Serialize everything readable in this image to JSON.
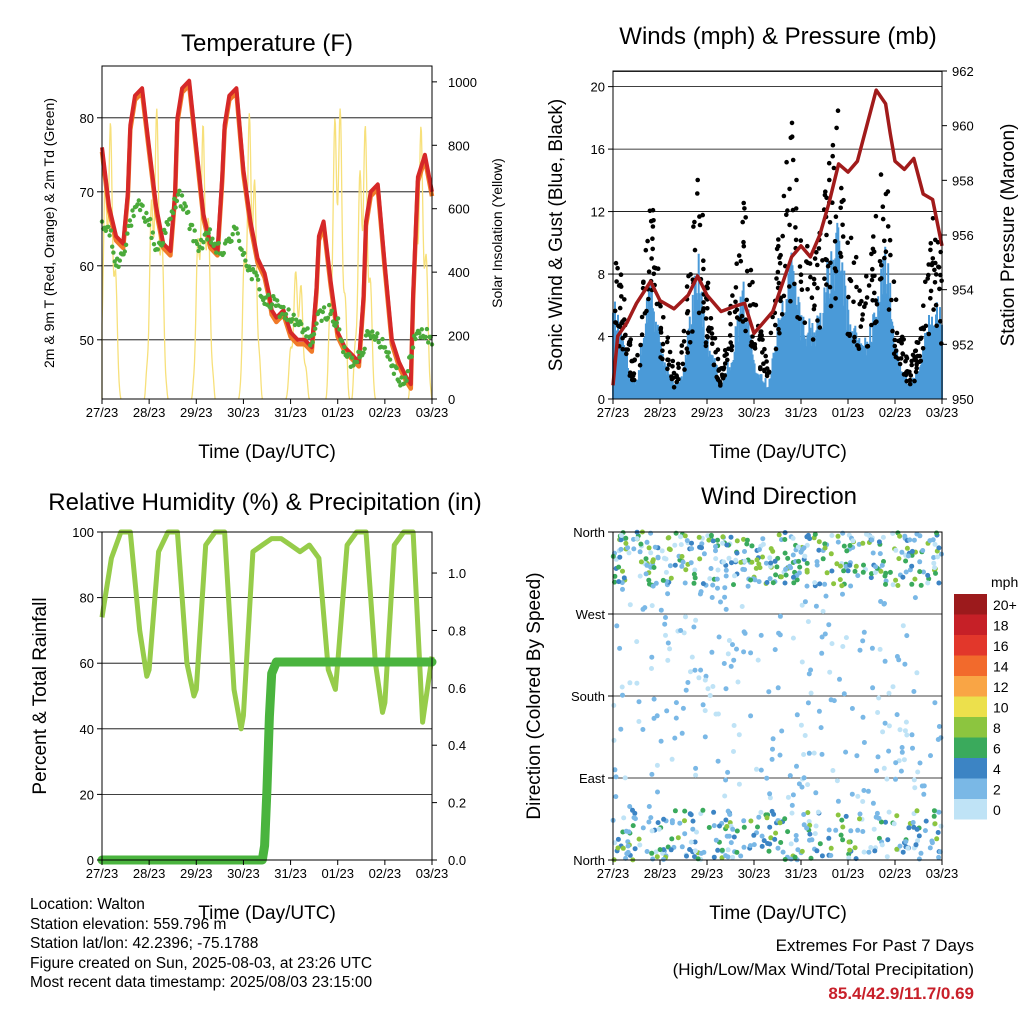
{
  "colors": {
    "temp2m": "#d62828",
    "temp9m": "#f07a28",
    "dewpoint": "#4aaa3a",
    "solar": "#f7e07a",
    "wind": "#4a9ad8",
    "gust": "#000000",
    "pressure": "#a11b1b",
    "rh": "#96cc4a",
    "precip": "#4ab43e"
  },
  "chart_data": [
    {
      "id": "temperature",
      "type": "line",
      "title": "Temperature (F)",
      "xlabel": "Time (Day/UTC)",
      "ylabel": "2m & 9m T (Red, Orange) & 2m Td (Green)",
      "y2label": "Solar Insolation (Yellow)",
      "xticks": [
        "27/23",
        "28/23",
        "29/23",
        "30/23",
        "31/23",
        "01/23",
        "02/23",
        "03/23"
      ],
      "xlim": [
        0,
        7
      ],
      "ylim": [
        42,
        87
      ],
      "yticks": [
        50,
        60,
        70,
        80
      ],
      "y2lim": [
        0,
        1050
      ],
      "y2ticks": [
        0,
        200,
        400,
        600,
        800,
        1000
      ],
      "series": [
        {
          "name": "2m T",
          "color": "temp2m",
          "x": [
            0,
            0.15,
            0.3,
            0.45,
            0.55,
            0.6,
            0.7,
            0.85,
            1,
            1.15,
            1.3,
            1.45,
            1.55,
            1.6,
            1.7,
            1.85,
            2,
            2.15,
            2.3,
            2.45,
            2.55,
            2.6,
            2.7,
            2.85,
            3,
            3.15,
            3.3,
            3.45,
            3.55,
            3.6,
            3.7,
            3.85,
            4,
            4.15,
            4.3,
            4.45,
            4.55,
            4.6,
            4.7,
            4.85,
            5,
            5.15,
            5.3,
            5.45,
            5.55,
            5.6,
            5.7,
            5.85,
            6,
            6.15,
            6.3,
            6.45,
            6.55,
            6.6,
            6.7,
            6.85,
            7
          ],
          "y": [
            76,
            68,
            64,
            63,
            70,
            79,
            83,
            84,
            76,
            68,
            63,
            62,
            70,
            80,
            84,
            85,
            76,
            67,
            63,
            62,
            72,
            79,
            83,
            84,
            73,
            66,
            61,
            59,
            56,
            54,
            53,
            54,
            51,
            50,
            50,
            49,
            57,
            64,
            66,
            58,
            51,
            49,
            48,
            47,
            56,
            66,
            70,
            71,
            60,
            50,
            47,
            45,
            44,
            56,
            72,
            75,
            70
          ]
        },
        {
          "name": "2m Td",
          "color": "dewpoint",
          "x": [
            0,
            0.15,
            0.3,
            0.45,
            0.6,
            0.8,
            1,
            1.15,
            1.3,
            1.45,
            1.6,
            1.8,
            2,
            2.15,
            2.3,
            2.45,
            2.6,
            2.8,
            3,
            3.15,
            3.3,
            3.45,
            3.6,
            3.8,
            4,
            4.15,
            4.3,
            4.45,
            4.6,
            4.8,
            5,
            5.15,
            5.3,
            5.45,
            5.6,
            5.8,
            6,
            6.15,
            6.3,
            6.45,
            6.6,
            6.8,
            7
          ],
          "y": [
            65,
            65,
            60,
            62,
            66,
            68,
            66,
            62,
            64,
            66,
            70,
            67,
            63,
            63,
            64,
            62,
            62,
            65,
            62,
            59,
            58,
            55,
            55,
            54,
            53,
            52,
            51,
            50,
            53,
            54,
            52,
            48,
            47,
            48,
            50,
            51,
            49,
            47,
            45,
            44,
            50,
            51,
            50
          ]
        }
      ],
      "solar": {
        "name": "Solar Insolation",
        "color": "solar",
        "peaks": [
          900,
          920,
          870,
          920,
          430,
          1010,
          900,
          870
        ],
        "noon": [
          0.15,
          1.15,
          2.15,
          3.15,
          4.15,
          5.0,
          5.55,
          6.75
        ]
      }
    },
    {
      "id": "winds",
      "type": "scatter",
      "title": "Winds (mph) & Pressure (mb)",
      "xlabel": "Time (Day/UTC)",
      "ylabel": "Sonic Wind & Gust (Blue, Black)",
      "y2label": "Station Pressure (Maroon)",
      "xticks": [
        "27/23",
        "28/23",
        "29/23",
        "30/23",
        "31/23",
        "01/23",
        "02/23",
        "03/23"
      ],
      "xlim": [
        0,
        7
      ],
      "ylim": [
        0,
        21
      ],
      "yticks": [
        0,
        4,
        8,
        12,
        16,
        20
      ],
      "y2lim": [
        950,
        962
      ],
      "y2ticks": [
        950,
        952,
        954,
        956,
        958,
        960,
        962
      ],
      "wind_envelope": {
        "x": [
          0,
          0.3,
          0.5,
          0.8,
          1,
          1.3,
          1.5,
          1.8,
          2,
          2.3,
          2.5,
          2.8,
          3,
          3.3,
          3.5,
          3.8,
          4,
          4.3,
          4.5,
          4.8,
          5,
          5.3,
          5.5,
          5.8,
          6,
          6.3,
          6.5,
          6.8,
          7
        ],
        "y": [
          7,
          3,
          1,
          9,
          4,
          1,
          2,
          10,
          5,
          1,
          3,
          8,
          3,
          1,
          5,
          10,
          6,
          5,
          8,
          12,
          6,
          4,
          5,
          11,
          4,
          1,
          2,
          7,
          6
        ]
      },
      "gust_envelope": {
        "x": [
          0,
          0.3,
          0.5,
          0.8,
          1,
          1.3,
          1.5,
          1.8,
          2,
          2.3,
          2.5,
          2.8,
          3,
          3.3,
          3.5,
          3.8,
          4,
          4.3,
          4.5,
          4.8,
          5,
          5.3,
          5.5,
          5.8,
          6,
          6.3,
          6.5,
          6.8,
          7
        ],
        "y": [
          12,
          5,
          2,
          14,
          7,
          2,
          4,
          17,
          8,
          2,
          6,
          13,
          7,
          2,
          10,
          18,
          11,
          9,
          15,
          19,
          11,
          8,
          10,
          17,
          7,
          2,
          4,
          12,
          10
        ]
      },
      "pressure": {
        "name": "Station Pressure",
        "color": "pressure",
        "x": [
          0,
          0.1,
          0.3,
          0.5,
          0.8,
          1,
          1.3,
          1.6,
          1.8,
          2,
          2.3,
          2.6,
          2.8,
          3,
          3.2,
          3.4,
          3.6,
          3.8,
          4,
          4.2,
          4.4,
          4.6,
          4.8,
          5,
          5.2,
          5.4,
          5.6,
          5.8,
          5.9,
          6,
          6.2,
          6.4,
          6.6,
          6.8,
          7
        ],
        "y": [
          950.5,
          952.3,
          952.8,
          953.5,
          954.3,
          953.6,
          953.3,
          953.8,
          954.5,
          953.8,
          953.2,
          953.4,
          953.5,
          952.4,
          952.8,
          953.2,
          954.2,
          955.2,
          955.6,
          955.2,
          956.0,
          957.2,
          958.6,
          958.3,
          958.7,
          960.0,
          961.3,
          960.8,
          959.7,
          958.7,
          958.4,
          958.8,
          957.5,
          957.3,
          955.6
        ]
      }
    },
    {
      "id": "humidity",
      "type": "line",
      "title": "Relative Humidity (%) & Precipitation (in)",
      "xlabel": "Time (Day/UTC)",
      "ylabel": "Percent & Total Rainfall",
      "xticks": [
        "27/23",
        "28/23",
        "29/23",
        "30/23",
        "31/23",
        "01/23",
        "02/23",
        "03/23"
      ],
      "xlim": [
        0,
        7
      ],
      "ylim": [
        0,
        100
      ],
      "yticks": [
        0,
        20,
        40,
        60,
        80,
        100
      ],
      "y2lim": [
        0,
        1.143
      ],
      "y2ticks": [
        "0.0",
        "0.2",
        "0.4",
        "0.6",
        "0.8",
        "1.0"
      ],
      "series": [
        {
          "name": "Relative Humidity",
          "color": "rh",
          "x": [
            0,
            0.2,
            0.4,
            0.6,
            0.8,
            0.95,
            1,
            1.2,
            1.4,
            1.6,
            1.8,
            1.95,
            2,
            2.2,
            2.4,
            2.6,
            2.8,
            2.95,
            3,
            3.2,
            3.4,
            3.6,
            3.8,
            4,
            4.2,
            4.4,
            4.6,
            4.8,
            4.95,
            5,
            5.2,
            5.4,
            5.6,
            5.8,
            5.95,
            6,
            6.2,
            6.4,
            6.6,
            6.8,
            7
          ],
          "y": [
            74,
            92,
            100,
            100,
            70,
            56,
            58,
            94,
            100,
            100,
            60,
            50,
            52,
            96,
            100,
            100,
            52,
            40,
            44,
            94,
            96,
            98,
            98,
            96,
            94,
            96,
            92,
            58,
            52,
            60,
            96,
            100,
            100,
            60,
            45,
            48,
            96,
            100,
            100,
            42,
            62
          ]
        },
        {
          "name": "Total Precipitation",
          "color": "precip",
          "x": [
            0,
            0.5,
            1,
            1.5,
            2,
            2.5,
            3,
            3.4,
            3.45,
            3.5,
            3.55,
            3.6,
            3.7,
            3.8,
            4,
            4.5,
            5,
            5.5,
            6,
            6.5,
            7
          ],
          "y": [
            0,
            0,
            0,
            0,
            0,
            0,
            0,
            0,
            0.05,
            0.25,
            0.5,
            0.65,
            0.69,
            0.69,
            0.69,
            0.69,
            0.69,
            0.69,
            0.69,
            0.69,
            0.69
          ]
        }
      ]
    },
    {
      "id": "wind-direction",
      "type": "scatter",
      "title": "Wind Direction",
      "xlabel": "Time (Day/UTC)",
      "ylabel": "Direction (Colored By Speed)",
      "xticks": [
        "27/23",
        "28/23",
        "29/23",
        "30/23",
        "31/23",
        "01/23",
        "02/23",
        "03/23"
      ],
      "xlim": [
        0,
        7
      ],
      "ylim": [
        0,
        360
      ],
      "yticks": [
        {
          "value": 0,
          "label": "North"
        },
        {
          "value": 90,
          "label": "East"
        },
        {
          "value": 180,
          "label": "South"
        },
        {
          "value": 270,
          "label": "West"
        },
        {
          "value": 360,
          "label": "North"
        }
      ],
      "legend": {
        "title": "mph",
        "entries": [
          {
            "label": "20+",
            "color": "#9c1a1c"
          },
          {
            "label": "18",
            "color": "#c62027"
          },
          {
            "label": "16",
            "color": "#e2372b"
          },
          {
            "label": "14",
            "color": "#f26a2c"
          },
          {
            "label": "12",
            "color": "#f9a545"
          },
          {
            "label": "10",
            "color": "#ece04c"
          },
          {
            "label": "8",
            "color": "#8cc53f"
          },
          {
            "label": "6",
            "color": "#3aaa5c"
          },
          {
            "label": "4",
            "color": "#3c84c4"
          },
          {
            "label": "2",
            "color": "#7ab8e6"
          },
          {
            "label": "0",
            "color": "#bfe3f6"
          }
        ]
      }
    }
  ],
  "info": {
    "location": "Location: Walton",
    "elevation": "Station elevation: 559.796 m",
    "latlon": "Station lat/lon: 42.2396; -75.1788",
    "created": "Figure created on Sun, 2025-08-03, at 23:26 UTC",
    "recent": "Most recent data timestamp: 2025/08/03 23:15:00"
  },
  "extremes": {
    "heading": "Extremes For Past 7 Days",
    "subheading": "(High/Low/Max Wind/Total Precipitation)",
    "values": "85.4/42.9/11.7/0.69"
  }
}
